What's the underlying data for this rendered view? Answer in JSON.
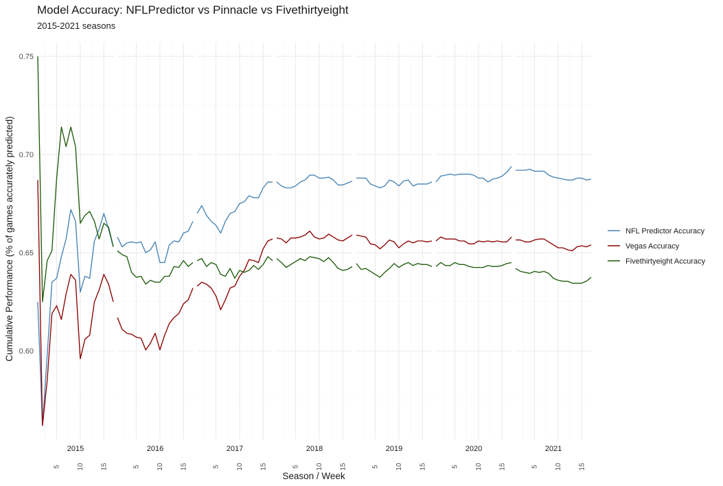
{
  "title": "Model Accuracy: NFLPredictor vs Pinnacle vs Fivethirtyeight",
  "subtitle": "2015-2021 seasons",
  "chart_data": {
    "type": "line",
    "title": "Model Accuracy: NFLPredictor vs Pinnacle vs Fivethirtyeight",
    "subtitle": "2015-2021 seasons",
    "xlabel": "Season / Week",
    "ylabel": "Cumulative Performance (% of games accurately predicted)",
    "facets": [
      "2015",
      "2016",
      "2017",
      "2018",
      "2019",
      "2020",
      "2021"
    ],
    "x_ticks": [
      5,
      10,
      15
    ],
    "x_tick_labels": [
      "5",
      "10",
      "15"
    ],
    "xlim": [
      1,
      17
    ],
    "ylim": [
      0.555,
      0.757
    ],
    "y_ticks": [
      0.6,
      0.65,
      0.7,
      0.75
    ],
    "y_tick_labels": [
      "0.60",
      "0.65",
      "0.70",
      "0.75"
    ],
    "grid": true,
    "legend_position": "right",
    "series": [
      {
        "name": "NFL Predictor Accuracy",
        "color": "#4682b4",
        "seasons": {
          "2015": [
            0.625,
            0.562,
            0.598,
            0.635,
            0.637,
            0.648,
            0.657,
            0.672,
            0.666,
            0.63,
            0.638,
            0.637,
            0.656,
            0.662,
            0.67,
            0.662,
            0.653
          ],
          "2016": [
            0.658,
            0.653,
            0.655,
            0.6555,
            0.655,
            0.6555,
            0.65,
            0.6515,
            0.6555,
            0.645,
            0.645,
            0.654,
            0.656,
            0.6555,
            0.66,
            0.661,
            0.666
          ],
          "2017": [
            0.67,
            0.674,
            0.669,
            0.666,
            0.664,
            0.66,
            0.666,
            0.67,
            0.671,
            0.675,
            0.676,
            0.679,
            0.678,
            0.678,
            0.683,
            0.686,
            0.686
          ],
          "2018": [
            0.686,
            0.684,
            0.683,
            0.683,
            0.684,
            0.686,
            0.687,
            0.6895,
            0.6895,
            0.688,
            0.688,
            0.6885,
            0.687,
            0.6845,
            0.6845,
            0.6855,
            0.6865
          ],
          "2019": [
            0.688,
            0.688,
            0.688,
            0.685,
            0.684,
            0.683,
            0.684,
            0.687,
            0.686,
            0.684,
            0.6865,
            0.687,
            0.684,
            0.685,
            0.685,
            0.685,
            0.686
          ],
          "2020": [
            0.686,
            0.689,
            0.6895,
            0.69,
            0.6895,
            0.69,
            0.69,
            0.69,
            0.6895,
            0.688,
            0.688,
            0.686,
            0.6875,
            0.688,
            0.689,
            0.691,
            0.694
          ],
          "2021": [
            0.692,
            0.692,
            0.692,
            0.6925,
            0.6915,
            0.6915,
            0.6915,
            0.6895,
            0.6885,
            0.688,
            0.6875,
            0.687,
            0.687,
            0.688,
            0.688,
            0.687,
            0.6875
          ]
        }
      },
      {
        "name": "Vegas Accuracy",
        "color": "#8b0000",
        "seasons": {
          "2015": [
            0.687,
            0.562,
            0.585,
            0.619,
            0.623,
            0.616,
            0.629,
            0.639,
            0.636,
            0.596,
            0.606,
            0.608,
            0.625,
            0.631,
            0.639,
            0.634,
            0.625
          ],
          "2016": [
            0.617,
            0.611,
            0.609,
            0.6085,
            0.607,
            0.6065,
            0.6005,
            0.604,
            0.609,
            0.6005,
            0.608,
            0.614,
            0.617,
            0.619,
            0.624,
            0.626,
            0.632
          ],
          "2017": [
            0.633,
            0.635,
            0.634,
            0.632,
            0.628,
            0.621,
            0.626,
            0.632,
            0.633,
            0.638,
            0.641,
            0.6465,
            0.646,
            0.645,
            0.652,
            0.656,
            0.657
          ],
          "2018": [
            0.6575,
            0.657,
            0.655,
            0.6575,
            0.6575,
            0.658,
            0.659,
            0.661,
            0.658,
            0.657,
            0.6575,
            0.6595,
            0.658,
            0.6565,
            0.656,
            0.6575,
            0.659
          ],
          "2019": [
            0.659,
            0.6585,
            0.658,
            0.6545,
            0.654,
            0.652,
            0.654,
            0.6565,
            0.6555,
            0.6525,
            0.6545,
            0.656,
            0.655,
            0.656,
            0.656,
            0.6555,
            0.656
          ],
          "2020": [
            0.656,
            0.658,
            0.657,
            0.657,
            0.657,
            0.656,
            0.656,
            0.6545,
            0.6545,
            0.656,
            0.6555,
            0.656,
            0.6555,
            0.656,
            0.6555,
            0.6555,
            0.658
          ],
          "2021": [
            0.6565,
            0.6565,
            0.6555,
            0.6555,
            0.6565,
            0.657,
            0.657,
            0.6555,
            0.654,
            0.6525,
            0.6525,
            0.6515,
            0.651,
            0.653,
            0.6535,
            0.653,
            0.654
          ]
        }
      },
      {
        "name": "Fivethirtyeight Accuracy",
        "color": "#1e5a0a",
        "seasons": {
          "2015": [
            0.75,
            0.625,
            0.646,
            0.651,
            0.688,
            0.714,
            0.704,
            0.714,
            0.704,
            0.665,
            0.669,
            0.671,
            0.666,
            0.657,
            0.665,
            0.663,
            0.653
          ],
          "2016": [
            0.651,
            0.649,
            0.648,
            0.64,
            0.6375,
            0.638,
            0.634,
            0.636,
            0.635,
            0.635,
            0.638,
            0.638,
            0.643,
            0.6425,
            0.646,
            0.643,
            0.645
          ],
          "2017": [
            0.646,
            0.647,
            0.643,
            0.645,
            0.644,
            0.639,
            0.638,
            0.642,
            0.637,
            0.641,
            0.64,
            0.641,
            0.6435,
            0.6415,
            0.644,
            0.648,
            0.646
          ],
          "2018": [
            0.647,
            0.645,
            0.6425,
            0.644,
            0.6455,
            0.647,
            0.646,
            0.648,
            0.6475,
            0.647,
            0.6455,
            0.6475,
            0.645,
            0.642,
            0.641,
            0.6415,
            0.643
          ],
          "2019": [
            0.6445,
            0.6415,
            0.642,
            0.6405,
            0.639,
            0.6375,
            0.64,
            0.642,
            0.6445,
            0.6425,
            0.644,
            0.645,
            0.6435,
            0.6445,
            0.644,
            0.644,
            0.643
          ],
          "2020": [
            0.643,
            0.645,
            0.6435,
            0.6435,
            0.645,
            0.644,
            0.644,
            0.643,
            0.6425,
            0.6425,
            0.6425,
            0.6435,
            0.643,
            0.643,
            0.6435,
            0.6445,
            0.645
          ],
          "2021": [
            0.642,
            0.6405,
            0.64,
            0.6395,
            0.6405,
            0.64,
            0.6405,
            0.6395,
            0.637,
            0.636,
            0.6355,
            0.6355,
            0.6345,
            0.6345,
            0.6345,
            0.6355,
            0.6375
          ]
        }
      }
    ]
  }
}
